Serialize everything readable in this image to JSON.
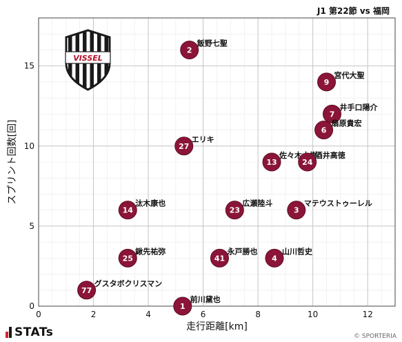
{
  "header": {
    "match": "J1 第22節 vs 福岡"
  },
  "footer": {
    "brand": "STATs",
    "copyright": "© SPORTERIA"
  },
  "logo": {
    "text": "VISSEL"
  },
  "colors": {
    "point": "#8b1538",
    "point_stroke": "#5e0c25",
    "grid": "#d8d8d8"
  },
  "chart_data": {
    "type": "scatter",
    "xlabel": "走行距離[km]",
    "ylabel": "スプリント回数[回]",
    "xlim": [
      0,
      13
    ],
    "ylim": [
      0,
      18
    ],
    "xticks": [
      0,
      2,
      4,
      6,
      8,
      10,
      12
    ],
    "yticks": [
      0,
      5,
      10,
      15
    ],
    "grid": true,
    "points": [
      {
        "num": "2",
        "name": "飯野七聖",
        "x": 5.5,
        "y": 16
      },
      {
        "num": "9",
        "name": "宮代大聖",
        "x": 10.5,
        "y": 14
      },
      {
        "num": "7",
        "name": "井手口陽介",
        "x": 10.7,
        "y": 12
      },
      {
        "num": "6",
        "name": "扇原貴宏",
        "x": 10.4,
        "y": 11
      },
      {
        "num": "27",
        "name": "エリキ",
        "x": 5.3,
        "y": 10
      },
      {
        "num": "13",
        "name": "佐々木大樹",
        "x": 8.5,
        "y": 9
      },
      {
        "num": "24",
        "name": "酒井高徳",
        "x": 9.8,
        "y": 9
      },
      {
        "num": "14",
        "name": "汰木康也",
        "x": 3.25,
        "y": 6
      },
      {
        "num": "23",
        "name": "広瀬陸斗",
        "x": 7.15,
        "y": 6
      },
      {
        "num": "3",
        "name": "マテウストゥーレル",
        "x": 9.4,
        "y": 6
      },
      {
        "num": "25",
        "name": "鍬先祐弥",
        "x": 3.25,
        "y": 3
      },
      {
        "num": "41",
        "name": "永戸勝也",
        "x": 6.6,
        "y": 3
      },
      {
        "num": "4",
        "name": "山川哲史",
        "x": 8.6,
        "y": 3
      },
      {
        "num": "77",
        "name": "グスタボクリスマン",
        "x": 1.75,
        "y": 1
      },
      {
        "num": "1",
        "name": "前川黛也",
        "x": 5.25,
        "y": 0
      }
    ]
  }
}
